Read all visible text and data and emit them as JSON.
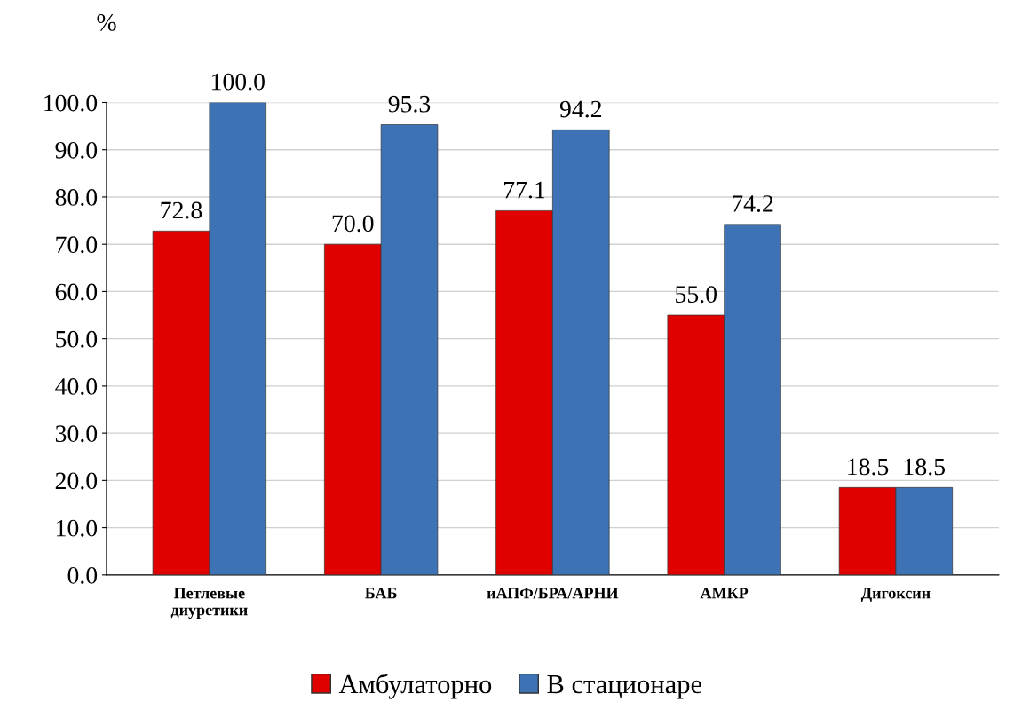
{
  "chart_data": {
    "type": "bar",
    "title": "%",
    "categories": [
      "Петлевые\nдиуретики",
      "БАБ",
      "иАПФ/БРА/АРНИ",
      "АМКР",
      "Дигоксин"
    ],
    "series": [
      {
        "name": "Амбулаторно",
        "color": "#e00000",
        "values": [
          72.8,
          70.0,
          77.1,
          55.0,
          18.5
        ],
        "value_labels": [
          "72.8",
          "70.0",
          "77.1",
          "55.0",
          "18.5"
        ]
      },
      {
        "name": "В стационаре",
        "color": "#3d72b4",
        "values": [
          100.0,
          95.3,
          94.2,
          74.2,
          18.5
        ],
        "value_labels": [
          "100.0",
          "95.3",
          "94.2",
          "74.2",
          "18.5"
        ]
      }
    ],
    "ylim": [
      0,
      100
    ],
    "yticks": [
      {
        "value": 0,
        "label": "0.0"
      },
      {
        "value": 10,
        "label": "10.0"
      },
      {
        "value": 20,
        "label": "20.0"
      },
      {
        "value": 30,
        "label": "30.0"
      },
      {
        "value": 40,
        "label": "40.0"
      },
      {
        "value": 50,
        "label": "50.0"
      },
      {
        "value": 60,
        "label": "60.0"
      },
      {
        "value": 70,
        "label": "70.0"
      },
      {
        "value": 80,
        "label": "80.0"
      },
      {
        "value": 90,
        "label": "90.0"
      },
      {
        "value": 100,
        "label": "100.0"
      }
    ],
    "grid": "y",
    "legend": "bottom"
  }
}
